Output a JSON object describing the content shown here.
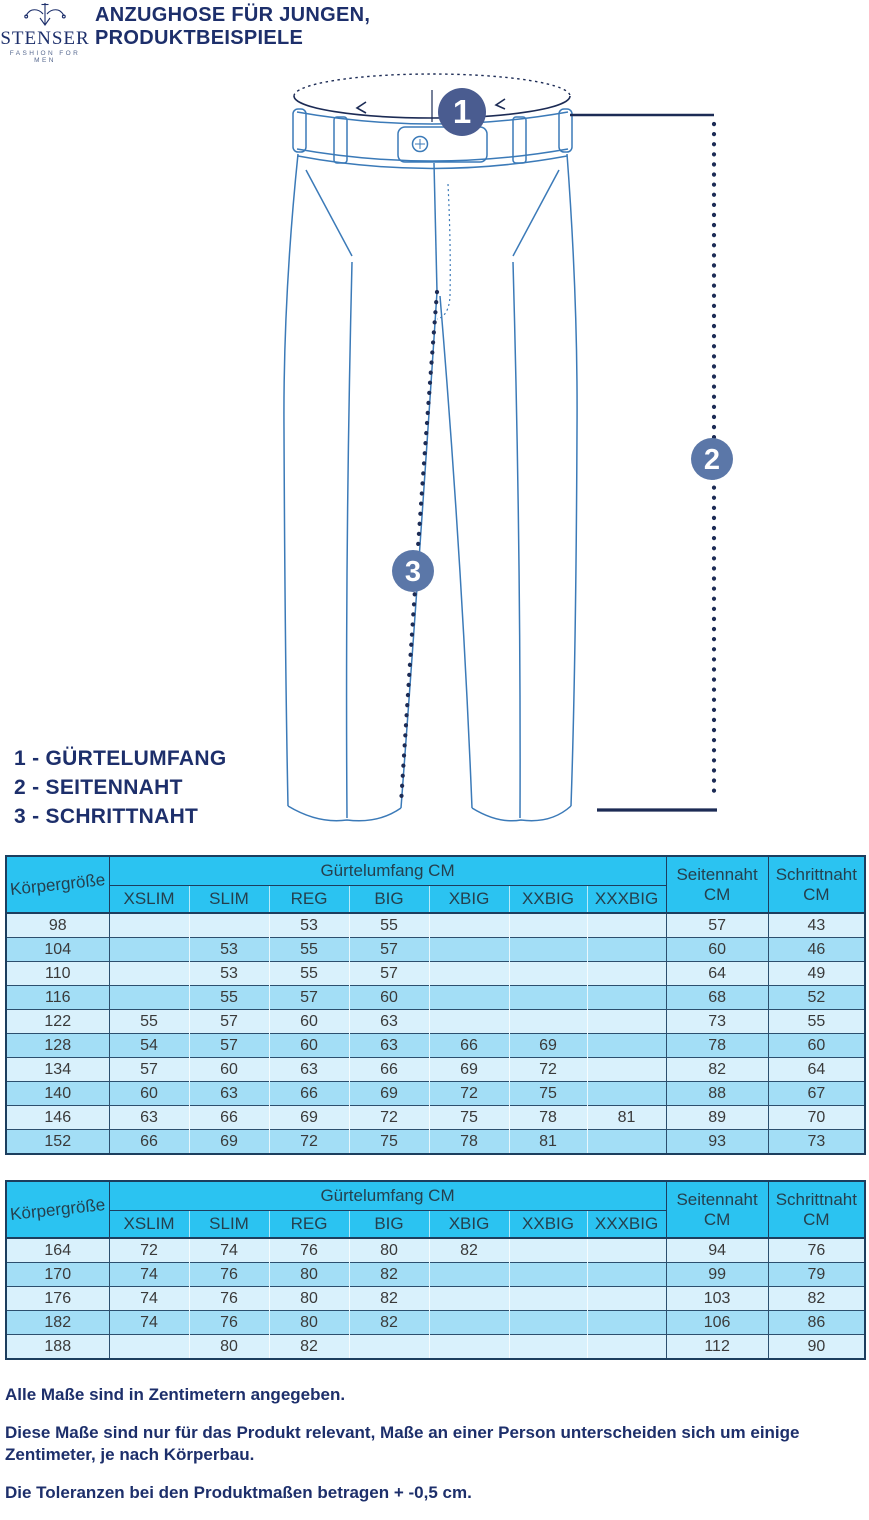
{
  "brand": {
    "name": "STENSER",
    "tagline": "FASHION FOR MEN"
  },
  "title": {
    "line1": "ANZUGHOSE FÜR JUNGEN,",
    "line2": "PRODUKTBEISPIELE"
  },
  "diagram": {
    "markers": [
      {
        "label": "1"
      },
      {
        "label": "2"
      },
      {
        "label": "3"
      }
    ]
  },
  "legend": {
    "items": [
      "1 - GÜRTELUMFANG",
      "2 - SEITENNAHT",
      "3 - SCHRITTNAHT"
    ]
  },
  "table_header": {
    "korpergrosse": "Körpergröße",
    "gurtelumfang": "Gürtelumfang CM",
    "sizes": [
      "XSLIM",
      "SLIM",
      "REG",
      "BIG",
      "XBIG",
      "XXBIG",
      "XXXBIG"
    ],
    "seitennaht": {
      "label": "Seitennaht",
      "unit": "CM"
    },
    "schrittnaht": {
      "label": "Schrittnaht",
      "unit": "CM"
    }
  },
  "tables": [
    {
      "name": "sizes-98-152",
      "rows": [
        [
          "98",
          "",
          "",
          "53",
          "55",
          "",
          "",
          "",
          "57",
          "43"
        ],
        [
          "104",
          "",
          "53",
          "55",
          "57",
          "",
          "",
          "",
          "60",
          "46"
        ],
        [
          "110",
          "",
          "53",
          "55",
          "57",
          "",
          "",
          "",
          "64",
          "49"
        ],
        [
          "116",
          "",
          "55",
          "57",
          "60",
          "",
          "",
          "",
          "68",
          "52"
        ],
        [
          "122",
          "55",
          "57",
          "60",
          "63",
          "",
          "",
          "",
          "73",
          "55"
        ],
        [
          "128",
          "54",
          "57",
          "60",
          "63",
          "66",
          "69",
          "",
          "78",
          "60"
        ],
        [
          "134",
          "57",
          "60",
          "63",
          "66",
          "69",
          "72",
          "",
          "82",
          "64"
        ],
        [
          "140",
          "60",
          "63",
          "66",
          "69",
          "72",
          "75",
          "",
          "88",
          "67"
        ],
        [
          "146",
          "63",
          "66",
          "69",
          "72",
          "75",
          "78",
          "81",
          "89",
          "70"
        ],
        [
          "152",
          "66",
          "69",
          "72",
          "75",
          "78",
          "81",
          "",
          "93",
          "73"
        ]
      ]
    },
    {
      "name": "sizes-164-188",
      "rows": [
        [
          "164",
          "72",
          "74",
          "76",
          "80",
          "82",
          "",
          "",
          "94",
          "76"
        ],
        [
          "170",
          "74",
          "76",
          "80",
          "82",
          "",
          "",
          "",
          "99",
          "79"
        ],
        [
          "176",
          "74",
          "76",
          "80",
          "82",
          "",
          "",
          "",
          "103",
          "82"
        ],
        [
          "182",
          "74",
          "76",
          "80",
          "82",
          "",
          "",
          "",
          "106",
          "86"
        ],
        [
          "188",
          "",
          "80",
          "82",
          "",
          "",
          "",
          "",
          "112",
          "90"
        ]
      ]
    }
  ],
  "footer": {
    "lines": [
      "Alle Maße sind in Zentimetern angegeben.",
      "Diese Maße sind nur für das Produkt relevant, Maße an einer Person unterscheiden sich um einige Zentimeter, je nach Körperbau.",
      "Die Toleranzen bei den Produktmaßen betragen + -0,5 cm."
    ]
  },
  "colors": {
    "navy_text": "#1d2f6b",
    "table_header_cyan": "#2bc3f1",
    "row_light": "#d9f1fc",
    "row_mid": "#a3def6",
    "drawing_blue": "#3b7ab8",
    "measure_navy": "#1c2b55",
    "marker_fill": "#5b77a8",
    "marker_fill_dark": "#4a5c90"
  }
}
